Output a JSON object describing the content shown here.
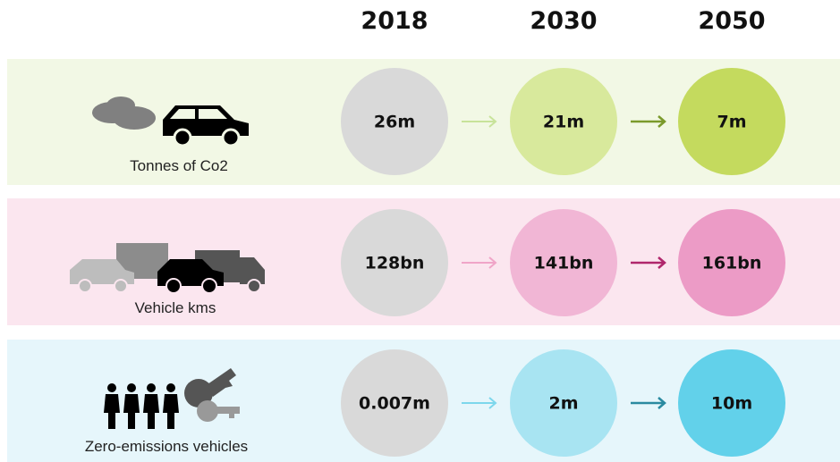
{
  "header": {
    "years": [
      "2018",
      "2030",
      "2050"
    ]
  },
  "rows": [
    {
      "label": "Tonnes of Co2",
      "values": [
        "26m",
        "21m",
        "7m"
      ]
    },
    {
      "label": "Vehicle kms",
      "values": [
        "128bn",
        "141bn",
        "161bn"
      ]
    },
    {
      "label": "Zero-emissions vehicles",
      "values": [
        "0.007m",
        "2m",
        "10m"
      ]
    }
  ]
}
